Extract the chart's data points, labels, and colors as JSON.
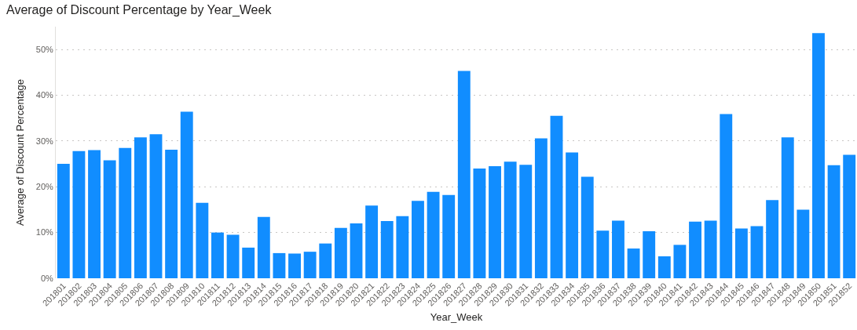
{
  "chart_data": {
    "type": "bar",
    "title": "Average of Discount Percentage by Year_Week",
    "xlabel": "Year_Week",
    "ylabel": "Average of Discount Percentage",
    "categories": [
      "201801",
      "201802",
      "201803",
      "201804",
      "201805",
      "201806",
      "201807",
      "201808",
      "201809",
      "201810",
      "201811",
      "201812",
      "201813",
      "201814",
      "201815",
      "201816",
      "201817",
      "201818",
      "201819",
      "201820",
      "201821",
      "201822",
      "201823",
      "201824",
      "201825",
      "201826",
      "201827",
      "201828",
      "201829",
      "201830",
      "201831",
      "201832",
      "201833",
      "201834",
      "201835",
      "201836",
      "201837",
      "201838",
      "201839",
      "201840",
      "201841",
      "201842",
      "201843",
      "201844",
      "201845",
      "201846",
      "201847",
      "201848",
      "201849",
      "201850",
      "201851",
      "201852"
    ],
    "values": [
      25.0,
      27.8,
      28.0,
      25.8,
      28.5,
      30.8,
      31.5,
      28.1,
      36.4,
      16.5,
      10.0,
      9.5,
      6.7,
      13.4,
      5.5,
      5.4,
      5.8,
      7.6,
      11.0,
      12.0,
      15.9,
      12.5,
      13.6,
      16.9,
      18.9,
      18.2,
      45.3,
      24.0,
      24.5,
      25.5,
      24.8,
      30.6,
      35.5,
      27.5,
      22.2,
      10.4,
      12.6,
      6.5,
      10.3,
      4.8,
      7.3,
      12.4,
      12.6,
      35.9,
      10.9,
      11.4,
      17.1,
      30.8,
      15.0,
      53.6,
      24.7,
      27.0
    ],
    "color": "#118dff",
    "ylim": [
      0,
      55
    ],
    "yticks": [
      {
        "value": 0,
        "label": "0%"
      },
      {
        "value": 10,
        "label": "10%"
      },
      {
        "value": 20,
        "label": "20%"
      },
      {
        "value": 30,
        "label": "30%"
      },
      {
        "value": 40,
        "label": "40%"
      },
      {
        "value": 50,
        "label": "50%"
      }
    ],
    "grid": "y"
  }
}
